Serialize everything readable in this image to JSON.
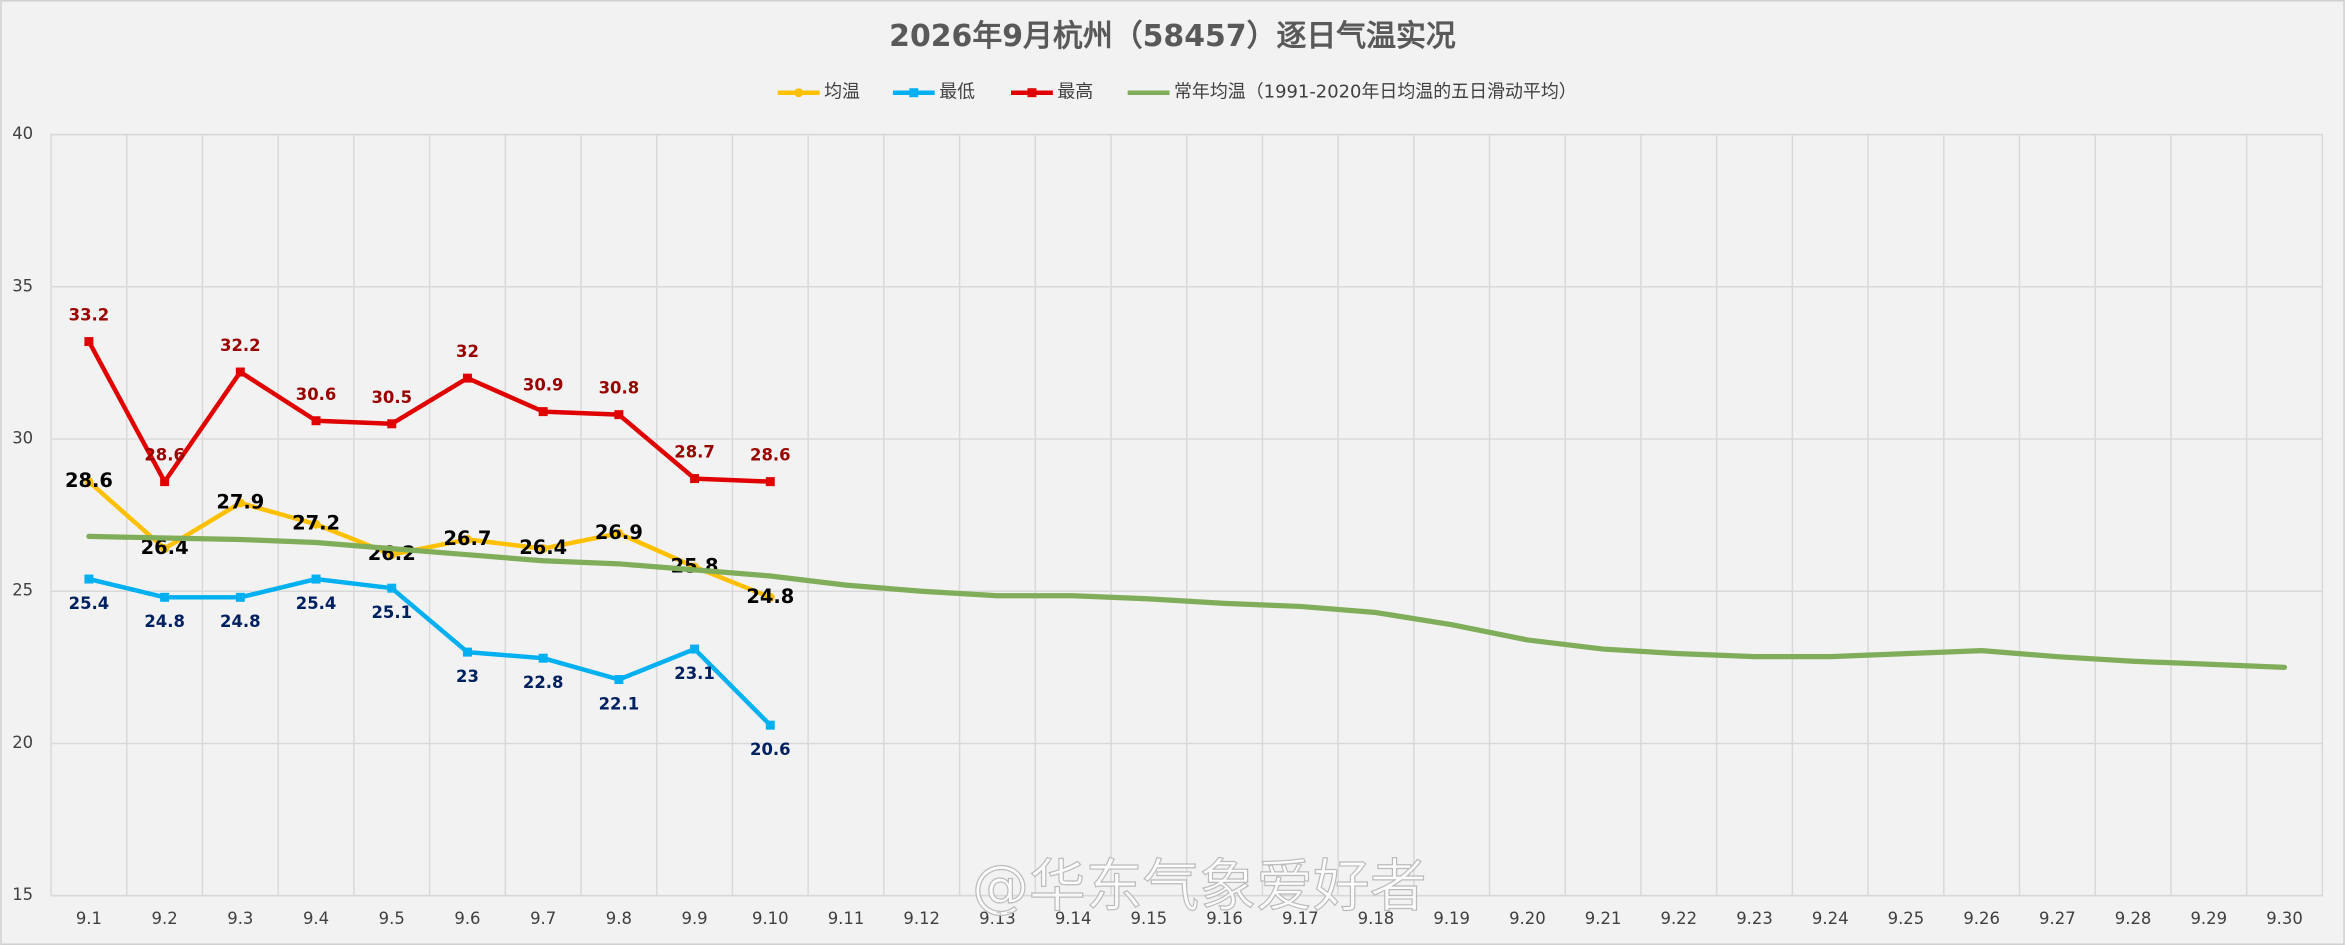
{
  "chart_data": {
    "type": "line",
    "title": "2026年9月杭州（58457）逐日气温实况",
    "watermark": "@华东气象爱好者",
    "categories": [
      "9.1",
      "9.2",
      "9.3",
      "9.4",
      "9.5",
      "9.6",
      "9.7",
      "9.8",
      "9.9",
      "9.10",
      "9.11",
      "9.12",
      "9.13",
      "9.14",
      "9.15",
      "9.16",
      "9.17",
      "9.18",
      "9.19",
      "9.20",
      "9.21",
      "9.22",
      "9.23",
      "9.24",
      "9.25",
      "9.26",
      "9.27",
      "9.28",
      "9.29",
      "9.30"
    ],
    "series": [
      {
        "name": "均温",
        "color": "#ffc000",
        "values": [
          28.6,
          26.4,
          27.9,
          27.2,
          26.2,
          26.7,
          26.4,
          26.9,
          25.8,
          24.8,
          null,
          null,
          null,
          null,
          null,
          null,
          null,
          null,
          null,
          null,
          null,
          null,
          null,
          null,
          null,
          null,
          null,
          null,
          null,
          null
        ]
      },
      {
        "name": "最低",
        "color": "#00b0f0",
        "values": [
          25.4,
          24.8,
          24.8,
          25.4,
          25.1,
          23,
          22.8,
          22.1,
          23.1,
          20.6,
          null,
          null,
          null,
          null,
          null,
          null,
          null,
          null,
          null,
          null,
          null,
          null,
          null,
          null,
          null,
          null,
          null,
          null,
          null,
          null
        ]
      },
      {
        "name": "最高",
        "color": "#e00000",
        "values": [
          33.2,
          28.6,
          32.2,
          30.6,
          30.5,
          32,
          30.9,
          30.8,
          28.7,
          28.6,
          null,
          null,
          null,
          null,
          null,
          null,
          null,
          null,
          null,
          null,
          null,
          null,
          null,
          null,
          null,
          null,
          null,
          null,
          null,
          null
        ]
      },
      {
        "name": "常年均温（1991-2020年日均温的五日滑动平均）",
        "color": "#7fad5a",
        "values": [
          26.8,
          26.75,
          26.7,
          26.6,
          26.4,
          26.2,
          26.0,
          25.9,
          25.7,
          25.5,
          25.2,
          25.0,
          24.85,
          24.85,
          24.75,
          24.6,
          24.5,
          24.3,
          23.9,
          23.4,
          23.1,
          22.95,
          22.85,
          22.85,
          22.95,
          23.05,
          22.85,
          22.7,
          22.6,
          22.5
        ]
      }
    ],
    "ylim": [
      15,
      40
    ],
    "yticks": [
      15,
      20,
      25,
      30,
      35,
      40
    ],
    "grid": true
  }
}
